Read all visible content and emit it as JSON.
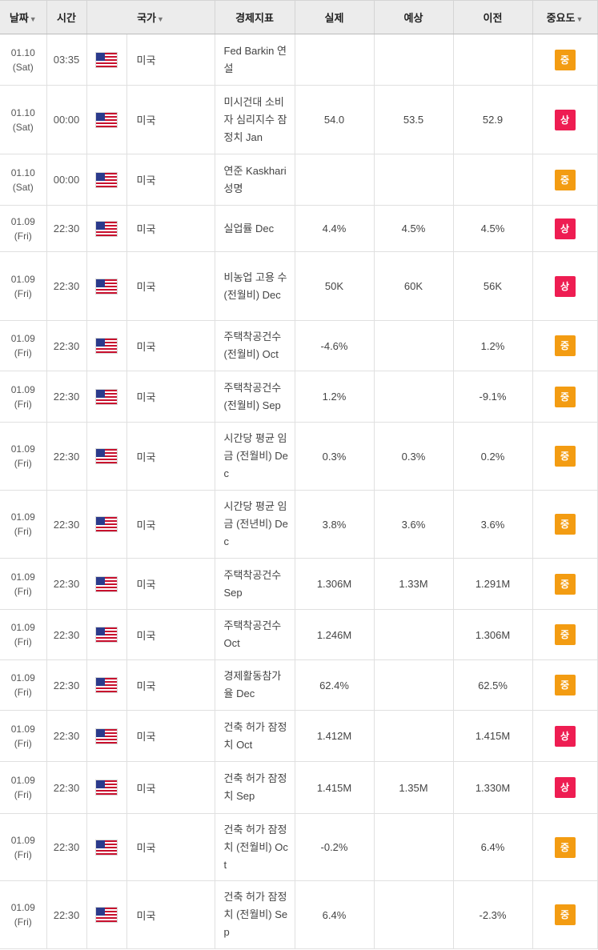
{
  "header": {
    "date": "날짜",
    "time": "시간",
    "country": "국가",
    "indicator": "경제지표",
    "actual": "실제",
    "forecast": "예상",
    "previous": "이전",
    "importance": "중요도",
    "sort_arrow": "▼"
  },
  "colors": {
    "importance_mid": "#f39c12",
    "importance_high": "#ee1d52"
  },
  "rows": [
    {
      "date": "01.10",
      "day": "(Sat)",
      "time": "03:35",
      "flag": "us-flag-icon",
      "country": "미국",
      "indicator": "Fed Barkin 연설",
      "actual": "",
      "forecast": "",
      "previous": "",
      "importance": "중",
      "level": "mid"
    },
    {
      "date": "01.10",
      "day": "(Sat)",
      "time": "00:00",
      "flag": "us-flag-icon",
      "country": "미국",
      "indicator": "미시건대 소비자 심리지수 잠정치 Jan",
      "actual": "54.0",
      "forecast": "53.5",
      "previous": "52.9",
      "importance": "상",
      "level": "high"
    },
    {
      "date": "01.10",
      "day": "(Sat)",
      "time": "00:00",
      "flag": "us-flag-icon",
      "country": "미국",
      "indicator": "연준 Kaskhari 성명",
      "actual": "",
      "forecast": "",
      "previous": "",
      "importance": "중",
      "level": "mid"
    },
    {
      "date": "01.09",
      "day": "(Fri)",
      "time": "22:30",
      "flag": "us-flag-icon",
      "country": "미국",
      "indicator": "실업률 Dec",
      "actual": "4.4%",
      "forecast": "4.5%",
      "previous": "4.5%",
      "importance": "상",
      "level": "high"
    },
    {
      "date": "01.09",
      "day": "(Fri)",
      "time": "22:30",
      "flag": "us-flag-icon",
      "country": "미국",
      "indicator": "비농업 고용 수 (전월비) Dec",
      "actual": "50K",
      "forecast": "60K",
      "previous": "56K",
      "importance": "상",
      "level": "high"
    },
    {
      "date": "01.09",
      "day": "(Fri)",
      "time": "22:30",
      "flag": "us-flag-icon",
      "country": "미국",
      "indicator": "주택착공건수 (전월비) Oct",
      "actual": "-4.6%",
      "forecast": "",
      "previous": "1.2%",
      "importance": "중",
      "level": "mid"
    },
    {
      "date": "01.09",
      "day": "(Fri)",
      "time": "22:30",
      "flag": "us-flag-icon",
      "country": "미국",
      "indicator": "주택착공건수 (전월비) Sep",
      "actual": "1.2%",
      "forecast": "",
      "previous": "-9.1%",
      "importance": "중",
      "level": "mid"
    },
    {
      "date": "01.09",
      "day": "(Fri)",
      "time": "22:30",
      "flag": "us-flag-icon",
      "country": "미국",
      "indicator": "시간당 평균 임금 (전월비) Dec",
      "actual": "0.3%",
      "forecast": "0.3%",
      "previous": "0.2%",
      "importance": "중",
      "level": "mid"
    },
    {
      "date": "01.09",
      "day": "(Fri)",
      "time": "22:30",
      "flag": "us-flag-icon",
      "country": "미국",
      "indicator": "시간당 평균 임금 (전년비) Dec",
      "actual": "3.8%",
      "forecast": "3.6%",
      "previous": "3.6%",
      "importance": "중",
      "level": "mid"
    },
    {
      "date": "01.09",
      "day": "(Fri)",
      "time": "22:30",
      "flag": "us-flag-icon",
      "country": "미국",
      "indicator": "주택착공건수 Sep",
      "actual": "1.306M",
      "forecast": "1.33M",
      "previous": "1.291M",
      "importance": "중",
      "level": "mid"
    },
    {
      "date": "01.09",
      "day": "(Fri)",
      "time": "22:30",
      "flag": "us-flag-icon",
      "country": "미국",
      "indicator": "주택착공건수 Oct",
      "actual": "1.246M",
      "forecast": "",
      "previous": "1.306M",
      "importance": "중",
      "level": "mid"
    },
    {
      "date": "01.09",
      "day": "(Fri)",
      "time": "22:30",
      "flag": "us-flag-icon",
      "country": "미국",
      "indicator": "경제활동참가율 Dec",
      "actual": "62.4%",
      "forecast": "",
      "previous": "62.5%",
      "importance": "중",
      "level": "mid"
    },
    {
      "date": "01.09",
      "day": "(Fri)",
      "time": "22:30",
      "flag": "us-flag-icon",
      "country": "미국",
      "indicator": "건축 허가 잠정치 Oct",
      "actual": "1.412M",
      "forecast": "",
      "previous": "1.415M",
      "importance": "상",
      "level": "high"
    },
    {
      "date": "01.09",
      "day": "(Fri)",
      "time": "22:30",
      "flag": "us-flag-icon",
      "country": "미국",
      "indicator": "건축 허가 잠정치 Sep",
      "actual": "1.415M",
      "forecast": "1.35M",
      "previous": "1.330M",
      "importance": "상",
      "level": "high"
    },
    {
      "date": "01.09",
      "day": "(Fri)",
      "time": "22:30",
      "flag": "us-flag-icon",
      "country": "미국",
      "indicator": "건축 허가 잠정치 (전월비) Oct",
      "actual": "-0.2%",
      "forecast": "",
      "previous": "6.4%",
      "importance": "중",
      "level": "mid"
    },
    {
      "date": "01.09",
      "day": "(Fri)",
      "time": "22:30",
      "flag": "us-flag-icon",
      "country": "미국",
      "indicator": "건축 허가 잠정치 (전월비) Sep",
      "actual": "6.4%",
      "forecast": "",
      "previous": "-2.3%",
      "importance": "중",
      "level": "mid"
    }
  ]
}
